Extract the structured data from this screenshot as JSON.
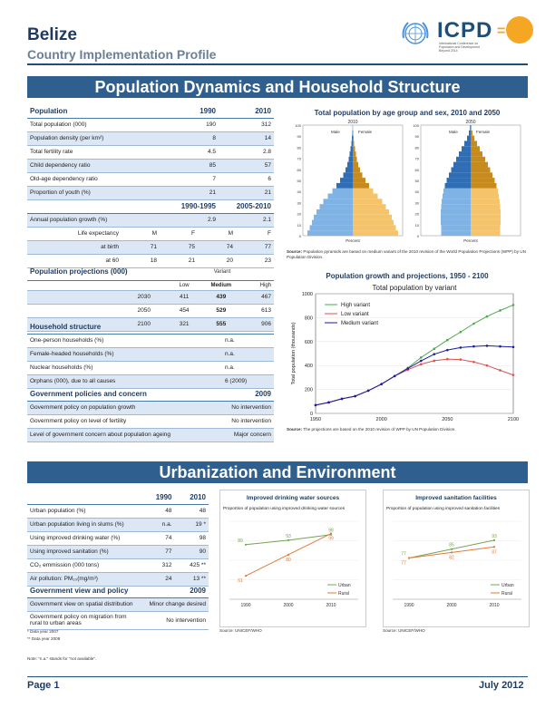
{
  "header": {
    "country": "Belize",
    "subtitle": "Country Implementation Profile",
    "icpd": "ICPD",
    "icpd_eq": "=",
    "icpd_sub": "International Conference on Population and Development Beyond 2014"
  },
  "section1": {
    "title": "Population Dynamics and Household Structure"
  },
  "pop_table": {
    "header": [
      "Population",
      "1990",
      "2010"
    ],
    "rows": [
      [
        "Total population (000)",
        "190",
        "312"
      ],
      [
        "Population density (per km²)",
        "8",
        "14"
      ],
      [
        "Total fertility rate",
        "4.5",
        "2.8"
      ],
      [
        "Child dependency ratio",
        "85",
        "57"
      ],
      [
        "Old-age dependency ratio",
        "7",
        "6"
      ],
      [
        "Proportion of youth (%)",
        "21",
        "21"
      ]
    ],
    "period_header": [
      "",
      "1990-1995",
      "2005-2010"
    ],
    "growth": [
      "Annual population growth (%)",
      "2.9",
      "2.1"
    ],
    "life": {
      "label": "Life expectancy",
      "sex": [
        "M",
        "F",
        "M",
        "F"
      ],
      "rows": [
        [
          "at birth",
          "71",
          "75",
          "74",
          "77"
        ],
        [
          "at 60",
          "18",
          "21",
          "20",
          "23"
        ]
      ]
    }
  },
  "proj_table": {
    "title": "Population projections (000)",
    "variant": "Variant",
    "cols": [
      "Low",
      "Medium",
      "High"
    ],
    "rows": [
      [
        "2030",
        "411",
        "439",
        "467"
      ],
      [
        "2050",
        "454",
        "529",
        "613"
      ],
      [
        "2100",
        "321",
        "555",
        "906"
      ]
    ]
  },
  "household": {
    "title": "Household structure",
    "rows": [
      [
        "One-person households (%)",
        "n.a."
      ],
      [
        "Female-headed households (%)",
        "n.a."
      ],
      [
        "Nuclear households (%)",
        "n.a."
      ],
      [
        "Orphans (000), due to all causes",
        "6 (2009)"
      ]
    ]
  },
  "policy1": {
    "title": "Government policies and concern",
    "year": "2009",
    "rows": [
      [
        "Government policy on population growth",
        "No intervention"
      ],
      [
        "Government policy on level of fertility",
        "No intervention"
      ],
      [
        "Level of government concern about population ageing",
        "Major concern"
      ]
    ]
  },
  "pyramid": {
    "title": "Total population by age group and sex, 2010 and 2050",
    "year_a": "2010",
    "year_b": "2050",
    "male": "Male",
    "female": "Female",
    "source_label": "Source:",
    "source": "Population pyramids are based on medium variant of the 2010 revision of the World Population Projections (WPP) by UN Population Division.",
    "yticks": [
      "100",
      "90",
      "80",
      "70",
      "60",
      "50",
      "40",
      "30",
      "20",
      "10",
      "0"
    ],
    "xlabel": "Percent"
  },
  "chart_data": [
    {
      "type": "line",
      "title": "Population growth and projections, 1950 - 2100",
      "subtitle": "Total population by variant",
      "ylabel": "Total population (thousands)",
      "x": [
        1950,
        1960,
        1970,
        1980,
        1990,
        2000,
        2010,
        2020,
        2030,
        2040,
        2050,
        2060,
        2070,
        2080,
        2090,
        2100
      ],
      "xticks": [
        "1950",
        "2000",
        "2050",
        "2100"
      ],
      "yticks": [
        "0",
        "200",
        "400",
        "600",
        "800",
        "1000"
      ],
      "ylim": [
        0,
        1000
      ],
      "series": [
        {
          "name": "High variant",
          "color": "#4ea84e",
          "values": [
            69,
            92,
            122,
            144,
            190,
            245,
            312,
            380,
            467,
            540,
            613,
            680,
            750,
            810,
            860,
            906
          ]
        },
        {
          "name": "Low variant",
          "color": "#d9534f",
          "values": [
            69,
            92,
            122,
            144,
            190,
            245,
            312,
            365,
            411,
            440,
            454,
            450,
            430,
            400,
            360,
            321
          ]
        },
        {
          "name": "Medium variant",
          "color": "#1a1aa6",
          "values": [
            69,
            92,
            122,
            144,
            190,
            245,
            312,
            375,
            439,
            495,
            529,
            550,
            560,
            565,
            560,
            555
          ]
        }
      ],
      "source_label": "Source:",
      "source": "The projections are based on the 2010 revision of WPP by UN Population Division."
    },
    {
      "type": "line",
      "title": "Improved drinking water sources",
      "subtitle": "Proportion of population using improved drinking water sources",
      "x": [
        "1990",
        "2000",
        "2010"
      ],
      "series": [
        {
          "name": "Urban",
          "color": "#77a353",
          "values": [
            89,
            93,
            98
          ]
        },
        {
          "name": "Rural",
          "color": "#e07b39",
          "values": [
            61,
            80,
            99
          ]
        }
      ],
      "source": "Source: UNICEF/WHO"
    },
    {
      "type": "line",
      "title": "Improved sanitation facilities",
      "subtitle": "Proportion of population using improved sanitation facilities",
      "x": [
        "1990",
        "2000",
        "2010"
      ],
      "series": [
        {
          "name": "Urban",
          "color": "#77a353",
          "values": [
            77,
            85,
            93
          ]
        },
        {
          "name": "Rural",
          "color": "#e07b39",
          "values": [
            77,
            82,
            87
          ]
        }
      ],
      "source": "Source: UNICEF/WHO"
    }
  ],
  "section2": {
    "title": "Urbanization and Environment"
  },
  "urban_table": {
    "cols": [
      "1990",
      "2010"
    ],
    "rows": [
      [
        "Urban population (%)",
        "48",
        "48"
      ],
      [
        "Urban population living in slums (%)",
        "n.a.",
        "19 *"
      ],
      [
        "Using improved drinking water (%)",
        "74",
        "98"
      ],
      [
        "Using improved sanitation (%)",
        "77",
        "90"
      ],
      [
        "CO₂ emmission (000 tons)",
        "312",
        "425 **"
      ],
      [
        "Air pollution: PM₁₀(mg/m³)",
        "24",
        "13 **"
      ]
    ]
  },
  "policy2": {
    "title": "Government view and policy",
    "year": "2009",
    "rows": [
      [
        "Government view on spatial distribution",
        "Minor change desired"
      ],
      [
        "Government policy on migration from rural to urban areas",
        "No intervention"
      ]
    ]
  },
  "notes": {
    "n1": "* Data year 2007",
    "n2": "** Data year 2008",
    "n3": "Note: \"n.a.\" stands for \"not available\"."
  },
  "footer": {
    "page": "Page 1",
    "date": "July 2012"
  }
}
